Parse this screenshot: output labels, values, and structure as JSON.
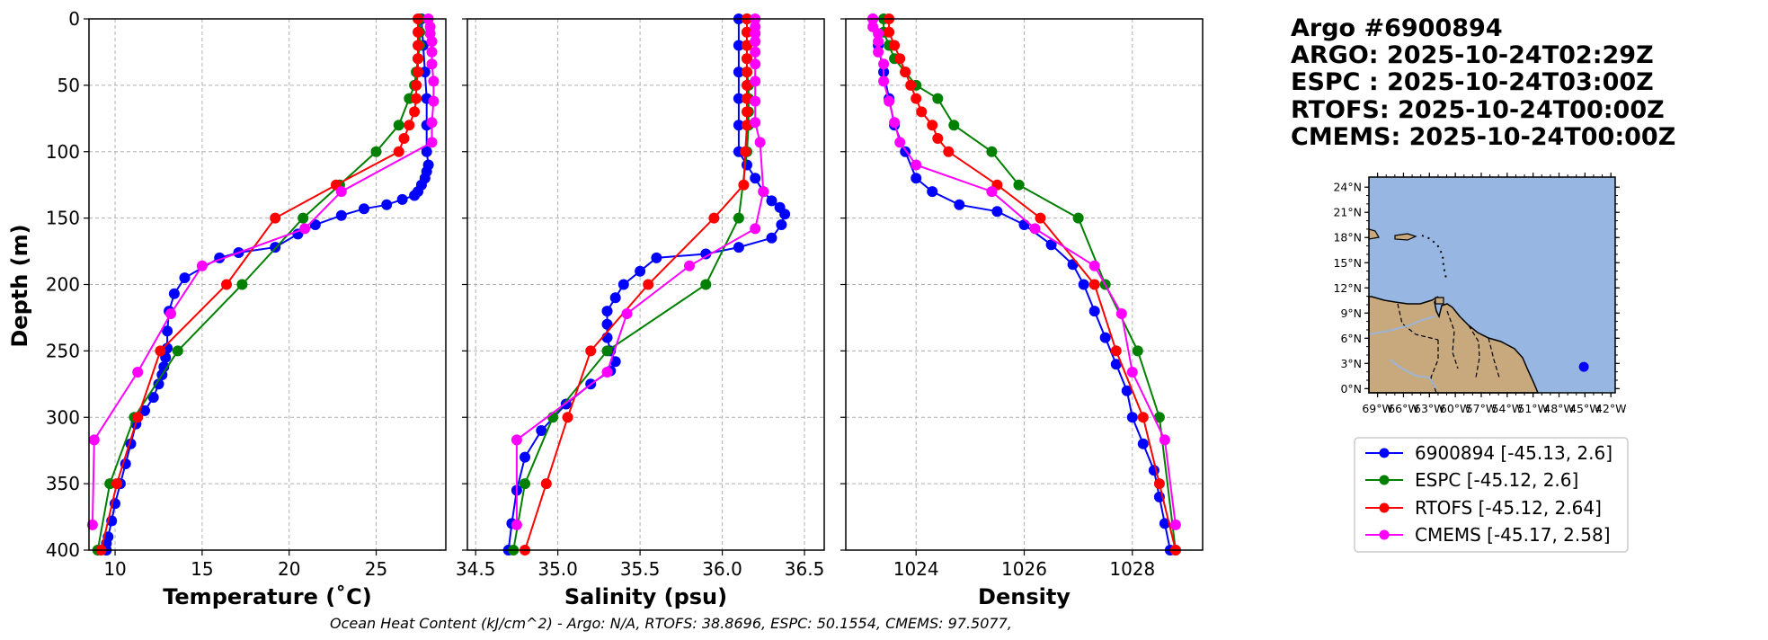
{
  "header": {
    "lines": [
      "Argo #6900894",
      "ARGO: 2025-10-24T02:29Z",
      "ESPC : 2025-10-24T03:00Z",
      "RTOFS: 2025-10-24T00:00Z",
      "CMEMS: 2025-10-24T00:00Z"
    ]
  },
  "colors": {
    "argo": "#0000ff",
    "espc": "#008000",
    "rtofs": "#ff0000",
    "cmems": "#ff00ff",
    "ocean": "#97b6e1",
    "land": "#c8a97e"
  },
  "legend": [
    {
      "label": "6900894 [-45.13, 2.6]",
      "color": "#0000ff"
    },
    {
      "label": "ESPC [-45.12, 2.6]",
      "color": "#008000"
    },
    {
      "label": "RTOFS [-45.12, 2.64]",
      "color": "#ff0000"
    },
    {
      "label": "CMEMS [-45.17, 2.58]",
      "color": "#ff00ff"
    }
  ],
  "footer": "Ocean Heat Content (kJ/cm^2) - Argo: N/A,  RTOFS: 38.8696,  ESPC: 50.1554,  CMEMS: 97.5077,",
  "map": {
    "lat_ticks": [
      "0°N",
      "3°N",
      "6°N",
      "9°N",
      "12°N",
      "15°N",
      "18°N",
      "21°N",
      "24°N"
    ],
    "lon_ticks": [
      "69°W",
      "66°W",
      "63°W",
      "60°W",
      "57°W",
      "54°W",
      "51°W",
      "48°W",
      "45°W",
      "42°W"
    ],
    "lon_range": [
      -70,
      -41.5
    ],
    "lat_range": [
      -0.5,
      25.2
    ],
    "float_position": [
      -45.13,
      2.6
    ]
  },
  "chart_data": [
    {
      "type": "line",
      "title": "",
      "xlabel": "Temperature (˚C)",
      "ylabel": "Depth (m)",
      "xlim": [
        8.5,
        29
      ],
      "ylim": [
        400,
        0
      ],
      "x_ticks": [
        "10",
        "15",
        "20",
        "25"
      ],
      "y_ticks": [
        "0",
        "50",
        "100",
        "150",
        "200",
        "250",
        "300",
        "350",
        "400"
      ],
      "grid": true,
      "series": [
        {
          "name": "6900894",
          "color": "#0000ff",
          "x": [
            27.6,
            27.7,
            27.8,
            27.9,
            27.9,
            27.9,
            28.0,
            27.9,
            27.8,
            27.6,
            27.4,
            27.2,
            26.5,
            25.6,
            24.3,
            23.0,
            21.5,
            20.5,
            19.2,
            17.1,
            16.0,
            14.0,
            13.4,
            13.1,
            13.0,
            13.0,
            12.9,
            12.8,
            12.7,
            12.5,
            12.2,
            11.7,
            11.2,
            10.9,
            10.6,
            10.3,
            10.0,
            9.8,
            9.6,
            9.5,
            9.5
          ],
          "y": [
            0,
            20,
            40,
            60,
            80,
            100,
            110,
            115,
            120,
            125,
            130,
            133,
            136,
            140,
            143,
            148,
            155,
            162,
            172,
            176,
            180,
            195,
            207,
            220,
            235,
            248,
            255,
            262,
            268,
            275,
            285,
            295,
            305,
            320,
            335,
            350,
            365,
            378,
            390,
            395,
            400
          ]
        },
        {
          "name": "ESPC",
          "color": "#008000",
          "x": [
            27.5,
            27.5,
            27.5,
            27.4,
            27.3,
            27.2,
            26.9,
            26.3,
            25.0,
            22.9,
            20.8,
            17.3,
            13.6,
            11.1,
            9.7,
            9.0
          ],
          "y": [
            0,
            10,
            20,
            30,
            40,
            50,
            60,
            80,
            100,
            125,
            150,
            200,
            250,
            300,
            350,
            400
          ]
        },
        {
          "name": "RTOFS",
          "color": "#ff0000",
          "x": [
            27.4,
            27.4,
            27.4,
            27.4,
            27.4,
            27.3,
            27.3,
            27.2,
            26.9,
            26.6,
            26.3,
            22.7,
            19.2,
            16.4,
            12.6,
            11.3,
            10.1,
            9.2
          ],
          "y": [
            0,
            10,
            20,
            30,
            40,
            50,
            60,
            70,
            80,
            90,
            100,
            125,
            150,
            200,
            250,
            300,
            350,
            400
          ]
        },
        {
          "name": "CMEMS",
          "color": "#ff00ff",
          "x": [
            28.0,
            28.1,
            28.1,
            28.2,
            28.2,
            28.2,
            28.3,
            28.3,
            28.2,
            28.2,
            23.0,
            20.9,
            15.0,
            13.2,
            11.3,
            8.8,
            8.7
          ],
          "y": [
            0,
            6,
            11,
            17,
            25,
            34,
            47,
            62,
            78,
            93,
            130,
            158,
            186,
            222,
            266,
            317,
            381
          ]
        }
      ]
    },
    {
      "type": "line",
      "title": "",
      "xlabel": "Salinity (psu)",
      "ylabel": "",
      "xlim": [
        34.45,
        36.62
      ],
      "ylim": [
        400,
        0
      ],
      "x_ticks": [
        "34.5",
        "35.0",
        "35.5",
        "36.0",
        "36.5"
      ],
      "grid": true,
      "series": [
        {
          "name": "6900894",
          "color": "#0000ff",
          "x": [
            36.1,
            36.1,
            36.1,
            36.1,
            36.1,
            36.1,
            36.15,
            36.2,
            36.25,
            36.3,
            36.35,
            36.38,
            36.36,
            36.3,
            36.1,
            35.9,
            35.6,
            35.5,
            35.4,
            35.35,
            35.3,
            35.3,
            35.3,
            35.32,
            35.35,
            35.32,
            35.2,
            35.05,
            34.9,
            34.8,
            34.75,
            34.72,
            34.7
          ],
          "y": [
            0,
            20,
            40,
            60,
            80,
            100,
            110,
            120,
            130,
            137,
            142,
            147,
            155,
            165,
            172,
            177,
            180,
            190,
            200,
            210,
            220,
            230,
            240,
            250,
            258,
            265,
            275,
            290,
            310,
            330,
            355,
            380,
            400
          ]
        },
        {
          "name": "ESPC",
          "color": "#008000",
          "x": [
            36.15,
            36.15,
            36.15,
            36.15,
            36.15,
            36.16,
            36.16,
            36.16,
            36.16,
            36.15,
            36.1,
            35.9,
            35.3,
            34.97,
            34.8,
            34.73
          ],
          "y": [
            0,
            10,
            20,
            30,
            40,
            50,
            60,
            70,
            80,
            100,
            150,
            200,
            250,
            300,
            350,
            400
          ]
        },
        {
          "name": "RTOFS",
          "color": "#ff0000",
          "x": [
            36.15,
            36.15,
            36.15,
            36.15,
            36.15,
            36.15,
            36.15,
            36.15,
            36.15,
            36.14,
            36.13,
            35.95,
            35.55,
            35.2,
            35.06,
            34.93,
            34.8
          ],
          "y": [
            0,
            10,
            20,
            30,
            40,
            50,
            60,
            70,
            80,
            100,
            125,
            150,
            200,
            250,
            300,
            350,
            400
          ]
        },
        {
          "name": "CMEMS",
          "color": "#ff00ff",
          "x": [
            36.2,
            36.2,
            36.2,
            36.2,
            36.2,
            36.2,
            36.2,
            36.2,
            36.2,
            36.23,
            36.25,
            36.2,
            35.8,
            35.42,
            35.3,
            34.75,
            34.75
          ],
          "y": [
            0,
            6,
            11,
            17,
            25,
            34,
            47,
            62,
            78,
            93,
            130,
            158,
            186,
            222,
            266,
            317,
            381
          ]
        }
      ]
    },
    {
      "type": "line",
      "title": "",
      "xlabel": "Density",
      "ylabel": "",
      "xlim": [
        1022.7,
        1029.3
      ],
      "ylim": [
        400,
        0
      ],
      "x_ticks": [
        "1024",
        "1026",
        "1028"
      ],
      "grid": true,
      "series": [
        {
          "name": "6900894",
          "color": "#0000ff",
          "x": [
            1023.2,
            1023.3,
            1023.4,
            1023.5,
            1023.6,
            1023.8,
            1024.0,
            1024.3,
            1024.8,
            1025.5,
            1026.0,
            1026.5,
            1026.9,
            1027.1,
            1027.3,
            1027.5,
            1027.7,
            1027.9,
            1028.0,
            1028.2,
            1028.4,
            1028.5,
            1028.6,
            1028.7
          ],
          "y": [
            0,
            20,
            40,
            60,
            80,
            100,
            120,
            130,
            140,
            145,
            155,
            170,
            185,
            200,
            220,
            240,
            260,
            280,
            300,
            320,
            340,
            360,
            380,
            400
          ]
        },
        {
          "name": "ESPC",
          "color": "#008000",
          "x": [
            1023.4,
            1023.4,
            1023.5,
            1023.6,
            1023.8,
            1024.0,
            1024.4,
            1024.7,
            1025.4,
            1025.9,
            1027.0,
            1027.5,
            1028.1,
            1028.5,
            1028.8
          ],
          "y": [
            0,
            10,
            20,
            30,
            40,
            50,
            60,
            80,
            100,
            125,
            150,
            200,
            250,
            300,
            400
          ]
        },
        {
          "name": "RTOFS",
          "color": "#ff0000",
          "x": [
            1023.5,
            1023.5,
            1023.6,
            1023.7,
            1023.8,
            1023.9,
            1024.0,
            1024.1,
            1024.3,
            1024.4,
            1024.6,
            1025.5,
            1026.3,
            1027.3,
            1027.7,
            1028.2,
            1028.5,
            1028.8
          ],
          "y": [
            0,
            10,
            20,
            30,
            40,
            50,
            60,
            70,
            80,
            90,
            100,
            125,
            150,
            200,
            250,
            300,
            350,
            400
          ]
        },
        {
          "name": "CMEMS",
          "color": "#ff00ff",
          "x": [
            1023.2,
            1023.2,
            1023.3,
            1023.3,
            1023.3,
            1023.4,
            1023.4,
            1023.5,
            1023.6,
            1023.7,
            1024.0,
            1025.4,
            1026.2,
            1027.3,
            1027.8,
            1028.0,
            1028.6,
            1028.8
          ],
          "y": [
            0,
            6,
            11,
            17,
            25,
            34,
            47,
            62,
            78,
            93,
            110,
            130,
            158,
            186,
            222,
            266,
            317,
            381
          ]
        }
      ]
    }
  ]
}
